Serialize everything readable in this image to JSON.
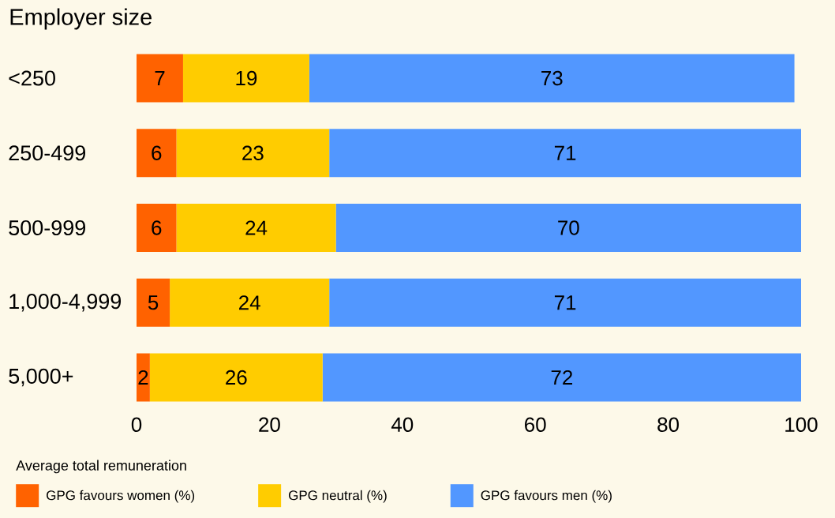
{
  "chart_data": {
    "type": "bar",
    "orientation": "horizontal",
    "stacked": true,
    "title": "Employer size",
    "categories": [
      "<250",
      "250-499",
      "500-999",
      "1,000-4,999",
      "5,000+"
    ],
    "series": [
      {
        "name": "GPG favours women (%)",
        "color": "#ff6200",
        "values": [
          7,
          6,
          6,
          5,
          2
        ]
      },
      {
        "name": "GPG neutral (%)",
        "color": "#ffcc00",
        "values": [
          19,
          23,
          24,
          24,
          26
        ]
      },
      {
        "name": "GPG favours men (%)",
        "color": "#5297ff",
        "values": [
          73,
          71,
          70,
          71,
          72
        ]
      }
    ],
    "xlim": [
      0,
      100
    ],
    "xticks": [
      0,
      20,
      40,
      60,
      80,
      100
    ],
    "data_labels": true,
    "legend": "bottom",
    "legend_title": "Average total remuneration"
  }
}
